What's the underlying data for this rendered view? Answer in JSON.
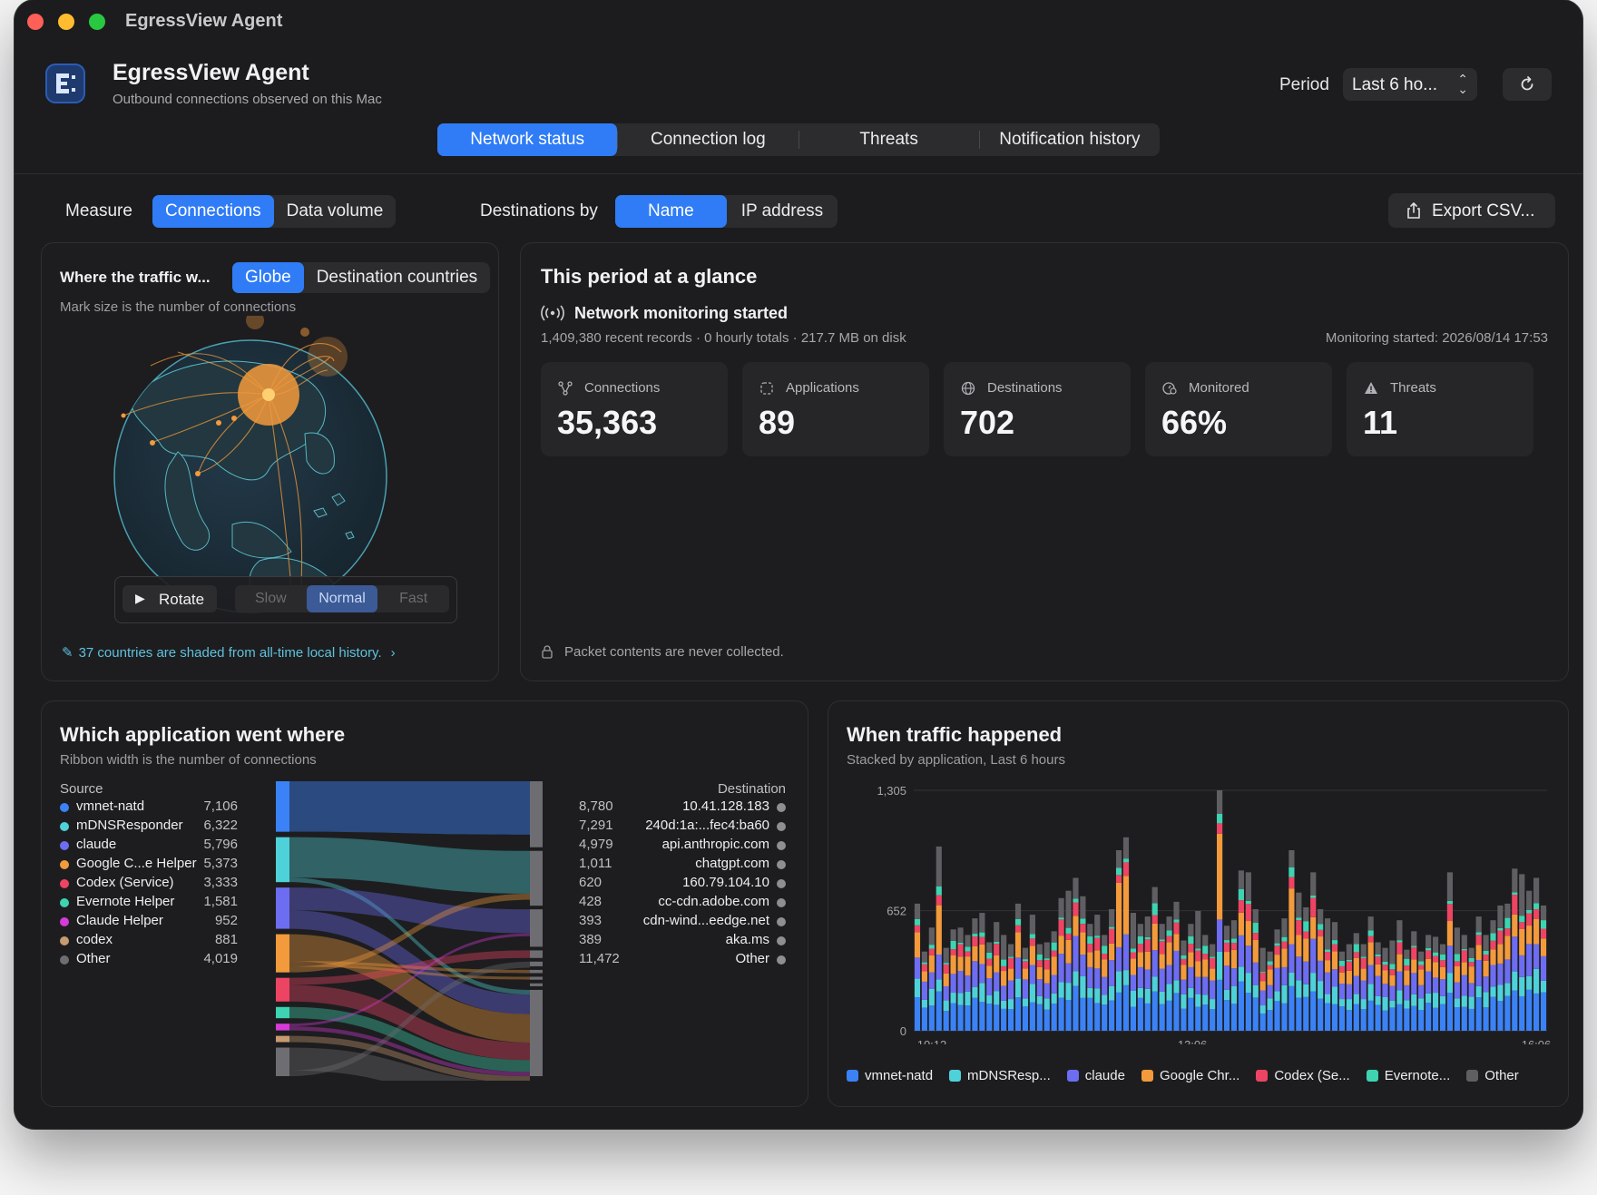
{
  "window": {
    "title": "EgressView Agent"
  },
  "header": {
    "app_title": "EgressView Agent",
    "app_subtitle": "Outbound connections observed on this Mac",
    "period_label": "Period",
    "period_value": "Last 6 ho..."
  },
  "tabs": [
    "Network status",
    "Connection log",
    "Threats",
    "Notification history"
  ],
  "toolbar": {
    "measure_label": "Measure",
    "measure_options": [
      "Connections",
      "Data volume"
    ],
    "dest_label": "Destinations by",
    "dest_options": [
      "Name",
      "IP address"
    ],
    "export_label": "Export CSV..."
  },
  "globe_panel": {
    "title": "Where the traffic w...",
    "view_options": [
      "Globe",
      "Destination countries"
    ],
    "subtitle": "Mark size is the number of connections",
    "rotate_label": "Rotate",
    "speed_options": [
      "Slow",
      "Normal",
      "Fast"
    ],
    "footnote": "37 countries are shaded from all-time local history."
  },
  "glance": {
    "title": "This period at a glance",
    "status_title": "Network monitoring started",
    "records_text": "1,409,380 recent records · 0 hourly totals · 217.7 MB on disk",
    "monitoring_started": "Monitoring started: 2026/08/14 17:53",
    "stats": [
      {
        "label": "Connections",
        "value": "35,363"
      },
      {
        "label": "Applications",
        "value": "89"
      },
      {
        "label": "Destinations",
        "value": "702"
      },
      {
        "label": "Monitored",
        "value": "66%"
      },
      {
        "label": "Threats",
        "value": "11"
      }
    ],
    "privacy_note": "Packet contents are never collected."
  },
  "flow_panel": {
    "title": "Which application went where",
    "subtitle": "Ribbon width is the number of connections",
    "source_header": "Source",
    "dest_header": "Destination",
    "sources": [
      {
        "name": "vmnet-natd",
        "value": "7,106",
        "color": "#3b82f6"
      },
      {
        "name": "mDNSResponder",
        "value": "6,322",
        "color": "#4fd1d9"
      },
      {
        "name": "claude",
        "value": "5,796",
        "color": "#6d6df2"
      },
      {
        "name": "Google C...e Helper",
        "value": "5,373",
        "color": "#f39a3c"
      },
      {
        "name": "Codex (Service)",
        "value": "3,333",
        "color": "#ee4463"
      },
      {
        "name": "Evernote Helper",
        "value": "1,581",
        "color": "#3ed3b1"
      },
      {
        "name": "Claude Helper",
        "value": "952",
        "color": "#d63ad8"
      },
      {
        "name": "codex",
        "value": "881",
        "color": "#c79a72"
      },
      {
        "name": "Other",
        "value": "4,019",
        "color": "#6e6e72"
      }
    ],
    "destinations": [
      {
        "name": "10.41.128.183",
        "value": "8,780"
      },
      {
        "name": "240d:1a:...fec4:ba60",
        "value": "7,291"
      },
      {
        "name": "api.anthropic.com",
        "value": "4,979"
      },
      {
        "name": "chatgpt.com",
        "value": "1,011"
      },
      {
        "name": "160.79.104.10",
        "value": "620"
      },
      {
        "name": "cc-cdn.adobe.com",
        "value": "428"
      },
      {
        "name": "cdn-wind...eedge.net",
        "value": "393"
      },
      {
        "name": "aka.ms",
        "value": "389"
      },
      {
        "name": "Other",
        "value": "11,472"
      }
    ]
  },
  "time_panel": {
    "title": "When traffic happened",
    "subtitle": "Stacked by application, Last 6 hours",
    "legend": [
      {
        "name": "vmnet-natd",
        "color": "#3b82f6"
      },
      {
        "name": "mDNSResp...",
        "color": "#4fd1d9"
      },
      {
        "name": "claude",
        "color": "#6d6df2"
      },
      {
        "name": "Google Chr...",
        "color": "#f39a3c"
      },
      {
        "name": "Codex (Se...",
        "color": "#ee4463"
      },
      {
        "name": "Evernote...",
        "color": "#3ed3b1"
      },
      {
        "name": "Other",
        "color": "#5f5f63"
      }
    ]
  },
  "chart_data": {
    "type": "bar",
    "stacked": true,
    "title": "When traffic happened",
    "subtitle": "Stacked by application, Last 6 hours",
    "y_ticks": [
      "0",
      "652",
      "1,305"
    ],
    "ylim": [
      0,
      1305
    ],
    "x_tick_labels": [
      "10:12",
      "13:06",
      "16:06"
    ],
    "series_names": [
      "vmnet-natd",
      "mDNSResp...",
      "claude",
      "Google Chr...",
      "Codex (Se...",
      "Evernote...",
      "Other"
    ],
    "colors": [
      "#3b82f6",
      "#4fd1d9",
      "#6d6df2",
      "#f39a3c",
      "#ee4463",
      "#3ed3b1",
      "#5f5f63"
    ],
    "totals": [
      690,
      430,
      560,
      1000,
      450,
      550,
      560,
      520,
      610,
      640,
      480,
      590,
      520,
      470,
      690,
      450,
      630,
      470,
      480,
      540,
      720,
      760,
      830,
      730,
      580,
      630,
      520,
      660,
      980,
      1050,
      640,
      580,
      620,
      780,
      580,
      620,
      700,
      490,
      580,
      650,
      520,
      470,
      1305,
      570,
      600,
      870,
      860,
      660,
      450,
      430,
      550,
      610,
      980,
      750,
      670,
      860,
      660,
      610,
      590,
      430,
      470,
      530,
      470,
      620,
      480,
      450,
      490,
      600,
      440,
      540,
      430,
      520,
      510,
      470,
      860,
      560,
      520,
      450,
      620,
      520,
      600,
      680,
      690,
      880,
      850,
      760,
      830,
      680
    ],
    "mix": [
      0.27,
      0.12,
      0.19,
      0.16,
      0.08,
      0.04,
      0.14
    ]
  }
}
